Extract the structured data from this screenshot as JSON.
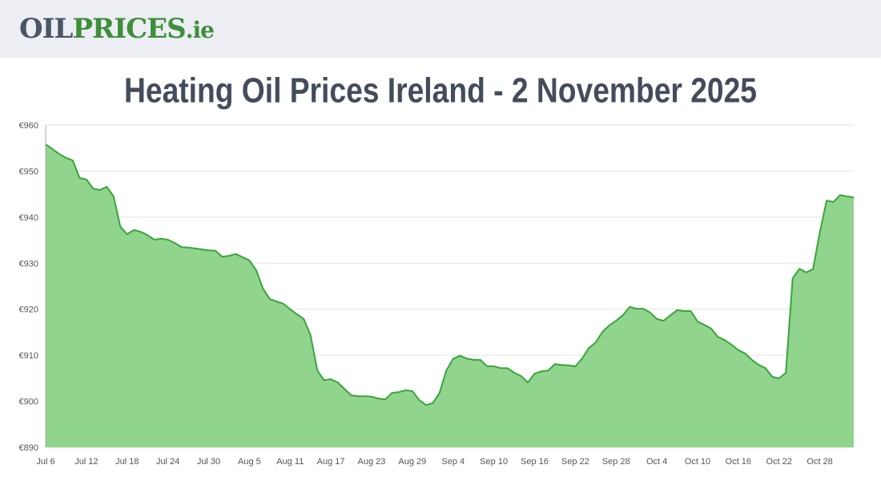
{
  "header": {
    "logo": {
      "oil": "OIL",
      "prices": "PRICES",
      "tld": ".ie"
    }
  },
  "chart_data": {
    "type": "area",
    "title": "Heating Oil Prices Ireland - 2 November 2025",
    "categories": [
      "Jul 6",
      null,
      null,
      null,
      null,
      null,
      "Jul 12",
      null,
      null,
      null,
      null,
      null,
      "Jul 18",
      null,
      null,
      null,
      null,
      null,
      "Jul 24",
      null,
      null,
      null,
      null,
      null,
      "Jul 30",
      null,
      null,
      null,
      null,
      null,
      "Aug 5",
      null,
      null,
      null,
      null,
      null,
      "Aug 11",
      null,
      null,
      null,
      null,
      null,
      "Aug 17",
      null,
      null,
      null,
      null,
      null,
      "Aug 23",
      null,
      null,
      null,
      null,
      null,
      "Aug 29",
      null,
      null,
      null,
      null,
      null,
      "Sep 4",
      null,
      null,
      null,
      null,
      null,
      "Sep 10",
      null,
      null,
      null,
      null,
      null,
      "Sep 16",
      null,
      null,
      null,
      null,
      null,
      "Sep 22",
      null,
      null,
      null,
      null,
      null,
      "Sep 28",
      null,
      null,
      null,
      null,
      null,
      "Oct 4",
      null,
      null,
      null,
      null,
      null,
      "Oct 10",
      null,
      null,
      null,
      null,
      null,
      "Oct 16",
      null,
      null,
      null,
      null,
      null,
      "Oct 22",
      null,
      null,
      null,
      null,
      null,
      "Oct 28",
      null,
      null,
      null,
      null,
      null
    ],
    "values": [
      955.8,
      954.8,
      953.7,
      952.9,
      952.3,
      948.5,
      948.2,
      946.2,
      945.9,
      946.6,
      944.5,
      937.9,
      936.3,
      937.2,
      936.8,
      936.1,
      935.1,
      935.3,
      935.1,
      934.4,
      933.5,
      933.4,
      933.2,
      933.0,
      932.8,
      932.7,
      931.4,
      931.6,
      932.0,
      931.3,
      930.6,
      928.5,
      924.5,
      922.2,
      921.7,
      921.2,
      920.0,
      918.9,
      917.9,
      914.4,
      906.7,
      904.6,
      904.8,
      904.1,
      902.7,
      901.3,
      901.1,
      901.1,
      901.0,
      900.6,
      900.4,
      901.8,
      902.0,
      902.4,
      902.2,
      900.3,
      899.2,
      899.6,
      901.8,
      906.7,
      909.2,
      909.9,
      909.3,
      909.0,
      909.0,
      907.6,
      907.6,
      907.2,
      907.2,
      906.2,
      905.5,
      904.1,
      906.0,
      906.5,
      906.7,
      908.1,
      907.9,
      907.8,
      907.6,
      909.3,
      911.6,
      912.8,
      915.1,
      916.5,
      917.5,
      918.7,
      920.5,
      920.1,
      920.1,
      919.3,
      917.9,
      917.5,
      918.7,
      919.8,
      919.6,
      919.6,
      917.3,
      916.6,
      915.8,
      914.0,
      913.3,
      912.3,
      911.1,
      910.4,
      909.0,
      907.9,
      907.2,
      905.3,
      905.0,
      906.2,
      926.7,
      928.8,
      928.0,
      928.7,
      936.7,
      943.6,
      943.3,
      944.8,
      944.5,
      944.3
    ],
    "color": "#3aa53a",
    "area_color": "#90d48d",
    "ylim": [
      890,
      960
    ],
    "yticks": [
      {
        "value": 890,
        "label": "€890"
      },
      {
        "value": 900,
        "label": "€900"
      },
      {
        "value": 910,
        "label": "€910"
      },
      {
        "value": 920,
        "label": "€920"
      },
      {
        "value": 930,
        "label": "€930"
      },
      {
        "value": 940,
        "label": "€940"
      },
      {
        "value": 950,
        "label": "€950"
      },
      {
        "value": 960,
        "label": "€960"
      }
    ],
    "grid": true
  }
}
